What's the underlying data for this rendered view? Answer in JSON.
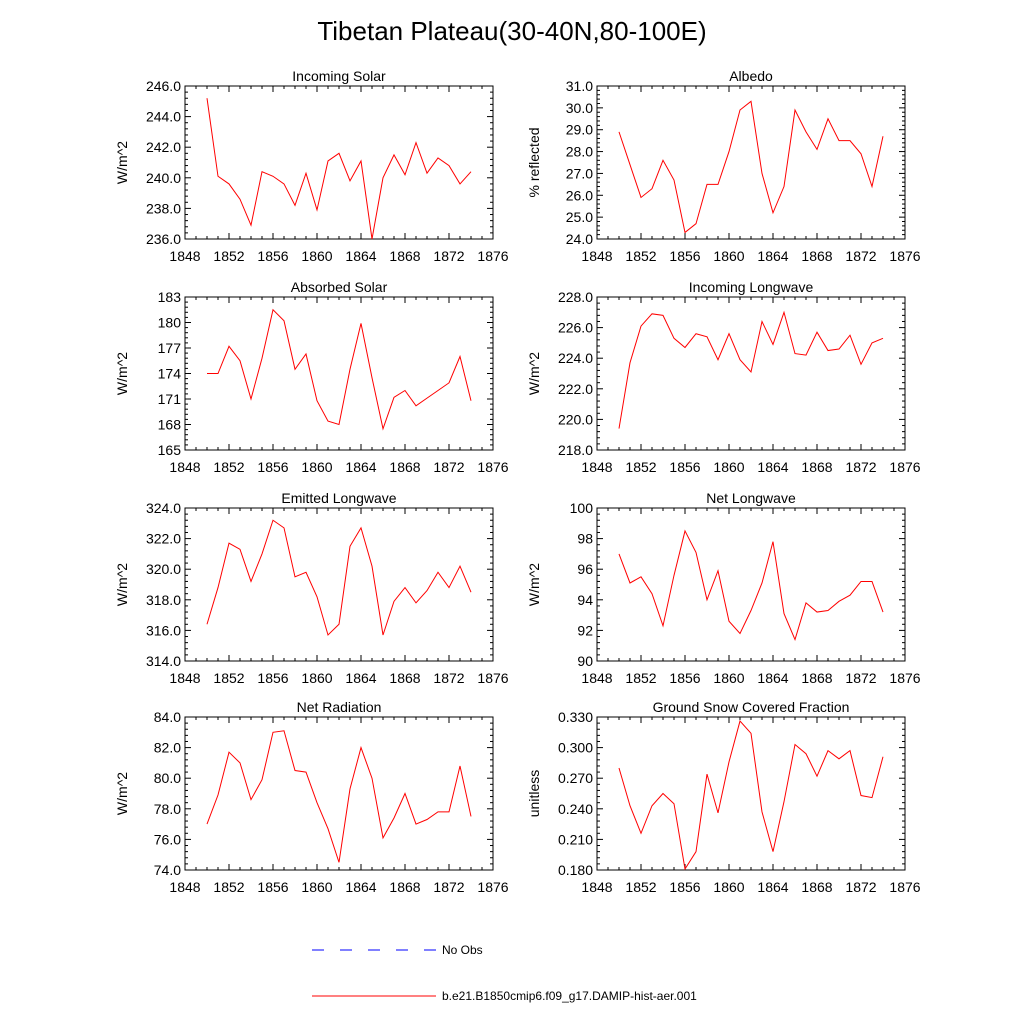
{
  "figure": {
    "title": "Tibetan Plateau(30-40N,80-100E)"
  },
  "chart_data": [
    {
      "type": "line",
      "title": "Incoming Solar",
      "ylabel": "W/m^2",
      "xlim": [
        1848,
        1876
      ],
      "x_ticks": [
        "1848",
        "1852",
        "1856",
        "1860",
        "1864",
        "1868",
        "1872",
        "1876"
      ],
      "ylim": [
        236.0,
        246.0
      ],
      "y_ticks": [
        "236.0",
        "238.0",
        "240.0",
        "242.0",
        "244.0",
        "246.0"
      ],
      "x": [
        1850,
        1851,
        1852,
        1853,
        1854,
        1855,
        1856,
        1857,
        1858,
        1859,
        1860,
        1861,
        1862,
        1863,
        1864,
        1865,
        1866,
        1867,
        1868,
        1869,
        1870,
        1871,
        1872,
        1873,
        1874
      ],
      "series": [
        {
          "name": "b.e21.B1850cmip6.f09_g17.DAMIP-hist-aer.001",
          "color": "#ff0000",
          "values": [
            245.2,
            240.1,
            239.6,
            238.6,
            236.9,
            240.4,
            240.1,
            239.6,
            238.2,
            240.3,
            237.9,
            241.1,
            241.6,
            239.8,
            241.1,
            236.0,
            240.0,
            241.5,
            240.2,
            242.3,
            240.3,
            241.3,
            240.8,
            239.6,
            240.4
          ]
        }
      ]
    },
    {
      "type": "line",
      "title": "Albedo",
      "ylabel": "% reflected",
      "xlim": [
        1848,
        1876
      ],
      "x_ticks": [
        "1848",
        "1852",
        "1856",
        "1860",
        "1864",
        "1868",
        "1872",
        "1876"
      ],
      "ylim": [
        24.0,
        31.0
      ],
      "y_ticks": [
        "24.0",
        "25.0",
        "26.0",
        "27.0",
        "28.0",
        "29.0",
        "30.0",
        "31.0"
      ],
      "x": [
        1850,
        1851,
        1852,
        1853,
        1854,
        1855,
        1856,
        1857,
        1858,
        1859,
        1860,
        1861,
        1862,
        1863,
        1864,
        1865,
        1866,
        1867,
        1868,
        1869,
        1870,
        1871,
        1872,
        1873,
        1874
      ],
      "series": [
        {
          "name": "b.e21.B1850cmip6.f09_g17.DAMIP-hist-aer.001",
          "color": "#ff0000",
          "values": [
            28.9,
            27.4,
            25.9,
            26.3,
            27.6,
            26.7,
            24.3,
            24.7,
            26.5,
            26.5,
            28.0,
            29.9,
            30.3,
            27.0,
            25.2,
            26.4,
            29.9,
            28.9,
            28.1,
            29.5,
            28.5,
            28.5,
            27.9,
            26.4,
            28.7
          ]
        }
      ]
    },
    {
      "type": "line",
      "title": "Absorbed Solar",
      "ylabel": "W/m^2",
      "xlim": [
        1848,
        1876
      ],
      "x_ticks": [
        "1848",
        "1852",
        "1856",
        "1860",
        "1864",
        "1868",
        "1872",
        "1876"
      ],
      "ylim": [
        165,
        183
      ],
      "y_ticks": [
        "165",
        "168",
        "171",
        "174",
        "177",
        "180",
        "183"
      ],
      "x": [
        1850,
        1851,
        1852,
        1853,
        1854,
        1855,
        1856,
        1857,
        1858,
        1859,
        1860,
        1861,
        1862,
        1863,
        1864,
        1865,
        1866,
        1867,
        1868,
        1869,
        1870,
        1871,
        1872,
        1873,
        1874
      ],
      "series": [
        {
          "name": "b.e21.B1850cmip6.f09_g17.DAMIP-hist-aer.001",
          "color": "#ff0000",
          "values": [
            174.0,
            174.0,
            177.2,
            175.5,
            171.0,
            175.8,
            181.5,
            180.2,
            174.5,
            176.3,
            170.8,
            168.4,
            168.0,
            174.5,
            179.9,
            173.5,
            167.5,
            171.2,
            172.0,
            170.2,
            171.1,
            172.0,
            172.9,
            176.0,
            170.8
          ]
        }
      ]
    },
    {
      "type": "line",
      "title": "Incoming Longwave",
      "ylabel": "W/m^2",
      "xlim": [
        1848,
        1876
      ],
      "x_ticks": [
        "1848",
        "1852",
        "1856",
        "1860",
        "1864",
        "1868",
        "1872",
        "1876"
      ],
      "ylim": [
        218.0,
        228.0
      ],
      "y_ticks": [
        "218.0",
        "220.0",
        "222.0",
        "224.0",
        "226.0",
        "228.0"
      ],
      "x": [
        1850,
        1851,
        1852,
        1853,
        1854,
        1855,
        1856,
        1857,
        1858,
        1859,
        1860,
        1861,
        1862,
        1863,
        1864,
        1865,
        1866,
        1867,
        1868,
        1869,
        1870,
        1871,
        1872,
        1873,
        1874
      ],
      "series": [
        {
          "name": "b.e21.B1850cmip6.f09_g17.DAMIP-hist-aer.001",
          "color": "#ff0000",
          "values": [
            219.4,
            223.7,
            226.1,
            226.9,
            226.8,
            225.3,
            224.7,
            225.6,
            225.4,
            223.9,
            225.6,
            223.9,
            223.1,
            226.4,
            224.9,
            227.0,
            224.3,
            224.2,
            225.7,
            224.5,
            224.6,
            225.5,
            223.6,
            225.0,
            225.3
          ]
        }
      ]
    },
    {
      "type": "line",
      "title": "Emitted Longwave",
      "ylabel": "W/m^2",
      "xlim": [
        1848,
        1876
      ],
      "x_ticks": [
        "1848",
        "1852",
        "1856",
        "1860",
        "1864",
        "1868",
        "1872",
        "1876"
      ],
      "ylim": [
        314.0,
        324.0
      ],
      "y_ticks": [
        "314.0",
        "316.0",
        "318.0",
        "320.0",
        "322.0",
        "324.0"
      ],
      "x": [
        1850,
        1851,
        1852,
        1853,
        1854,
        1855,
        1856,
        1857,
        1858,
        1859,
        1860,
        1861,
        1862,
        1863,
        1864,
        1865,
        1866,
        1867,
        1868,
        1869,
        1870,
        1871,
        1872,
        1873,
        1874
      ],
      "series": [
        {
          "name": "b.e21.B1850cmip6.f09_g17.DAMIP-hist-aer.001",
          "color": "#ff0000",
          "values": [
            316.4,
            318.8,
            321.7,
            321.3,
            319.2,
            321.0,
            323.2,
            322.7,
            319.5,
            319.8,
            318.2,
            315.7,
            316.4,
            321.5,
            322.7,
            320.2,
            315.7,
            317.9,
            318.8,
            317.8,
            318.6,
            319.8,
            318.8,
            320.2,
            318.5
          ]
        }
      ]
    },
    {
      "type": "line",
      "title": "Net Longwave",
      "ylabel": "W/m^2",
      "xlim": [
        1848,
        1876
      ],
      "x_ticks": [
        "1848",
        "1852",
        "1856",
        "1860",
        "1864",
        "1868",
        "1872",
        "1876"
      ],
      "ylim": [
        90,
        100
      ],
      "y_ticks": [
        "90",
        "92",
        "94",
        "96",
        "98",
        "100"
      ],
      "x": [
        1850,
        1851,
        1852,
        1853,
        1854,
        1855,
        1856,
        1857,
        1858,
        1859,
        1860,
        1861,
        1862,
        1863,
        1864,
        1865,
        1866,
        1867,
        1868,
        1869,
        1870,
        1871,
        1872,
        1873,
        1874
      ],
      "series": [
        {
          "name": "b.e21.B1850cmip6.f09_g17.DAMIP-hist-aer.001",
          "color": "#ff0000",
          "values": [
            97.0,
            95.1,
            95.5,
            94.4,
            92.3,
            95.6,
            98.5,
            97.1,
            94.0,
            95.9,
            92.6,
            91.8,
            93.3,
            95.1,
            97.8,
            93.1,
            91.4,
            93.8,
            93.2,
            93.3,
            93.9,
            94.3,
            95.2,
            95.2,
            93.2
          ]
        }
      ]
    },
    {
      "type": "line",
      "title": "Net Radiation",
      "ylabel": "W/m^2",
      "xlim": [
        1848,
        1876
      ],
      "x_ticks": [
        "1848",
        "1852",
        "1856",
        "1860",
        "1864",
        "1868",
        "1872",
        "1876"
      ],
      "ylim": [
        74.0,
        84.0
      ],
      "y_ticks": [
        "74.0",
        "76.0",
        "78.0",
        "80.0",
        "82.0",
        "84.0"
      ],
      "x": [
        1850,
        1851,
        1852,
        1853,
        1854,
        1855,
        1856,
        1857,
        1858,
        1859,
        1860,
        1861,
        1862,
        1863,
        1864,
        1865,
        1866,
        1867,
        1868,
        1869,
        1870,
        1871,
        1872,
        1873,
        1874
      ],
      "series": [
        {
          "name": "b.e21.B1850cmip6.f09_g17.DAMIP-hist-aer.001",
          "color": "#ff0000",
          "values": [
            77.0,
            78.9,
            81.7,
            81.0,
            78.6,
            79.9,
            83.0,
            83.1,
            80.5,
            80.4,
            78.4,
            76.7,
            74.5,
            79.3,
            82.0,
            80.0,
            76.1,
            77.4,
            79.0,
            77.0,
            77.3,
            77.8,
            77.8,
            80.8,
            77.5
          ]
        }
      ]
    },
    {
      "type": "line",
      "title": "Ground Snow Covered Fraction",
      "ylabel": "unitless",
      "xlim": [
        1848,
        1876
      ],
      "x_ticks": [
        "1848",
        "1852",
        "1856",
        "1860",
        "1864",
        "1868",
        "1872",
        "1876"
      ],
      "ylim": [
        0.18,
        0.33
      ],
      "y_ticks": [
        "0.180",
        "0.210",
        "0.240",
        "0.270",
        "0.300",
        "0.330"
      ],
      "x": [
        1850,
        1851,
        1852,
        1853,
        1854,
        1855,
        1856,
        1857,
        1858,
        1859,
        1860,
        1861,
        1862,
        1863,
        1864,
        1865,
        1866,
        1867,
        1868,
        1869,
        1870,
        1871,
        1872,
        1873,
        1874
      ],
      "series": [
        {
          "name": "b.e21.B1850cmip6.f09_g17.DAMIP-hist-aer.001",
          "color": "#ff0000",
          "values": [
            0.28,
            0.243,
            0.216,
            0.243,
            0.255,
            0.245,
            0.181,
            0.198,
            0.274,
            0.236,
            0.286,
            0.326,
            0.314,
            0.237,
            0.198,
            0.247,
            0.303,
            0.294,
            0.272,
            0.297,
            0.289,
            0.297,
            0.253,
            0.251,
            0.291
          ]
        }
      ]
    }
  ],
  "legend": [
    {
      "label": "No Obs",
      "color": "#0000ff",
      "style": "dashed"
    },
    {
      "label": "b.e21.B1850cmip6.f09_g17.DAMIP-hist-aer.001",
      "color": "#ff0000",
      "style": "solid"
    }
  ]
}
